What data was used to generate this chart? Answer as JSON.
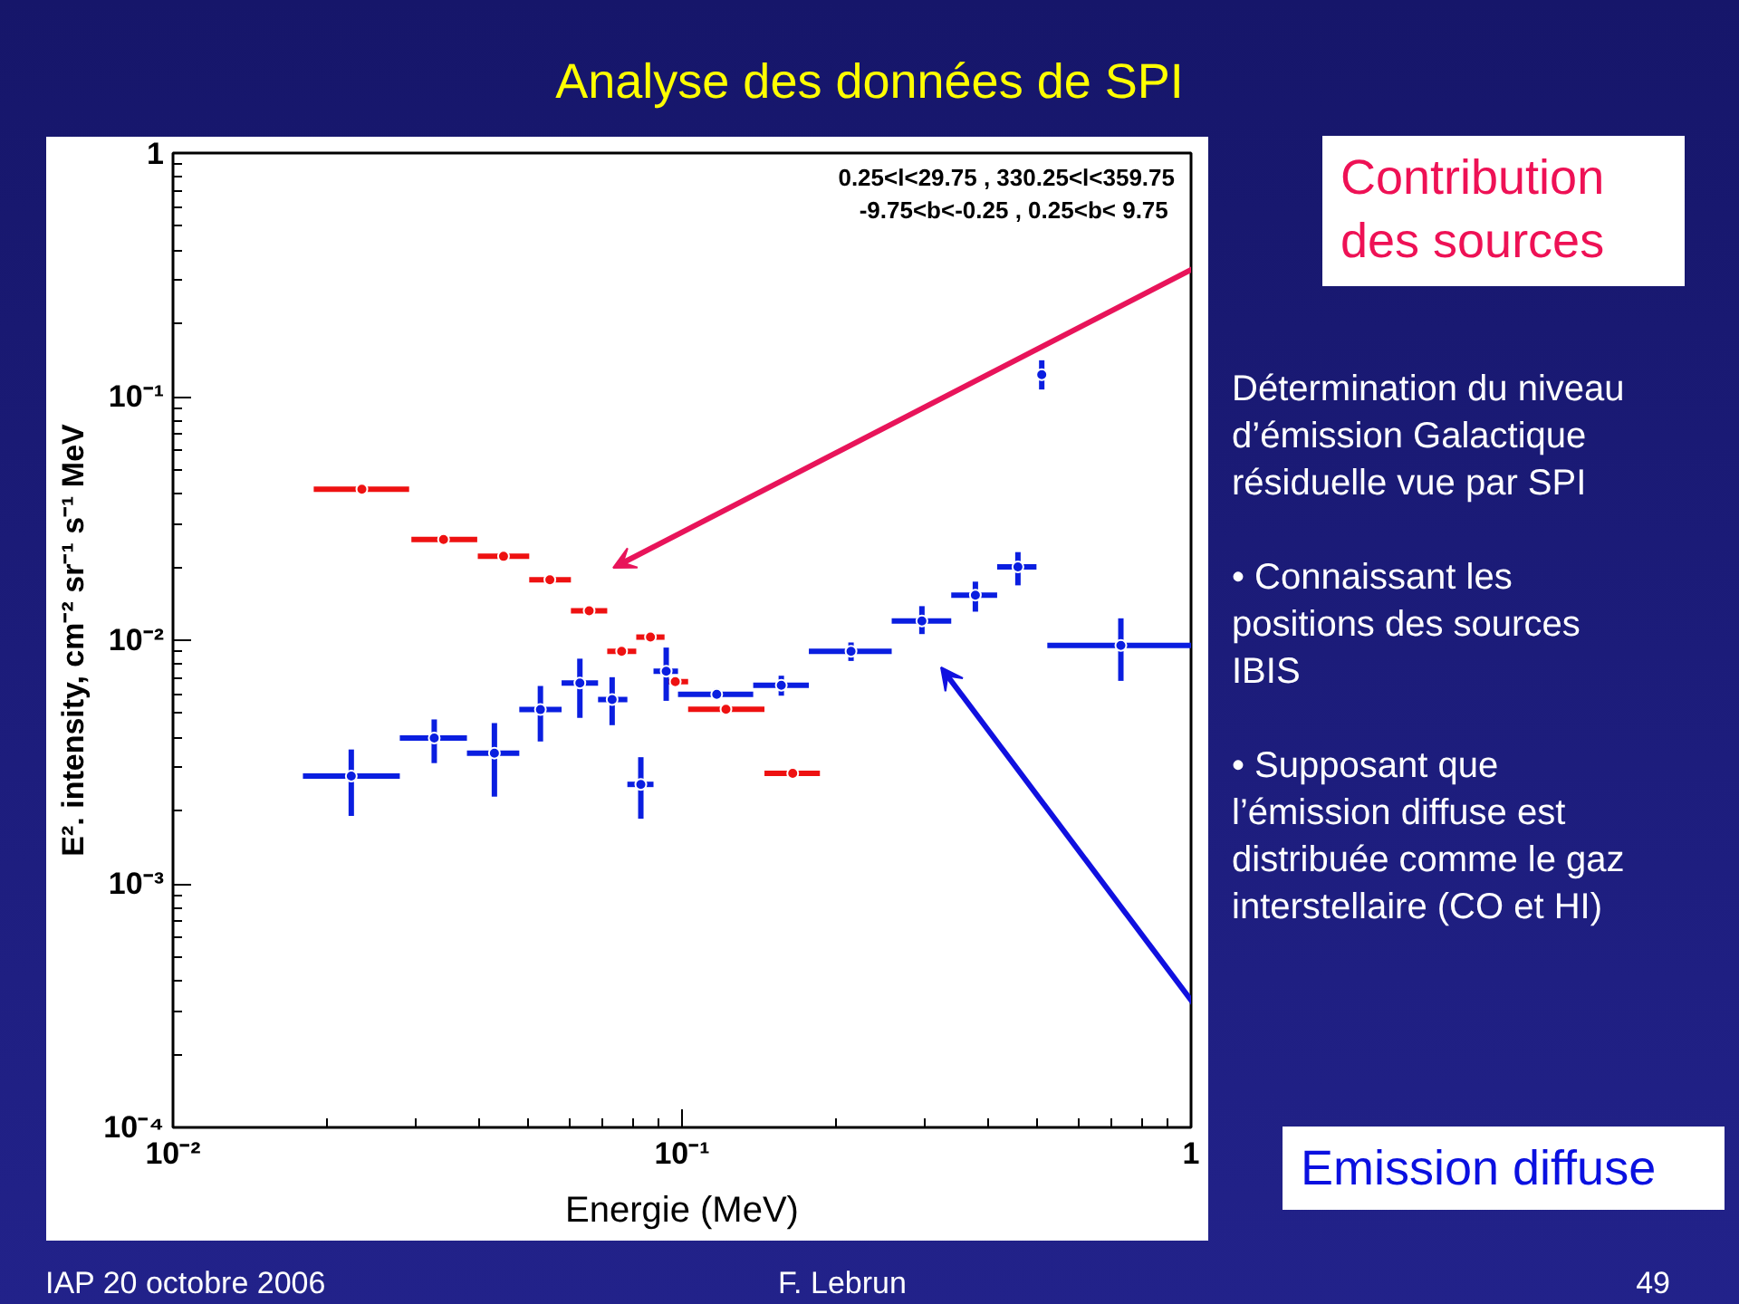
{
  "chart_data": {
    "type": "scatter",
    "title": "Analyse des données de SPI",
    "xlabel": "Energie (MeV)",
    "ylabel": "E². intensity, cm⁻² sr⁻¹ s⁻¹ MeV",
    "log": "xy",
    "marker": "circle",
    "grid": false,
    "xlim": [
      0.01,
      1
    ],
    "ylim": [
      0.0001,
      1
    ],
    "xticks": [
      {
        "value": 0.01,
        "label": "10⁻²"
      },
      {
        "value": 0.1,
        "label": "10⁻¹"
      },
      1
    ],
    "yticks": [
      {
        "value": 0.0001,
        "label": "10⁻⁴"
      },
      {
        "value": 0.001,
        "label": "10⁻³"
      },
      {
        "value": 0.01,
        "label": "10⁻²"
      },
      {
        "value": 0.1,
        "label": "10⁻¹"
      },
      1
    ],
    "series": [
      {
        "color": "#ee1111",
        "x": [
          0.0235,
          0.034,
          0.0446,
          0.055,
          0.0657,
          0.0761,
          0.0867,
          0.097,
          0.122,
          0.165
        ],
        "values": [
          0.0417,
          0.0259,
          0.0221,
          0.0177,
          0.0132,
          0.009,
          0.0103,
          0.00676,
          0.00521,
          0.00284
        ],
        "xerrors": [
          [
            0.0189,
            0.0291
          ],
          [
            0.0294,
            0.0396
          ],
          [
            0.0397,
            0.0501
          ],
          [
            0.0501,
            0.0605
          ],
          [
            0.0605,
            0.0713
          ],
          [
            0.0713,
            0.0813
          ],
          [
            0.0813,
            0.0924
          ],
          [
            0.0924,
            0.1028
          ],
          [
            0.1028,
            0.1452
          ],
          [
            0.1452,
            0.1866
          ]
        ]
      },
      {
        "color": "#0a1ee0",
        "x": [
          0.0224,
          0.0326,
          0.0428,
          0.0527,
          0.063,
          0.0729,
          0.083,
          0.0931,
          0.117,
          0.1567,
          0.2148,
          0.296,
          0.377,
          0.457,
          0.509,
          0.728
        ],
        "values": [
          0.00277,
          0.00397,
          0.00344,
          0.00519,
          0.00667,
          0.00571,
          0.00256,
          0.00746,
          0.006,
          0.00653,
          0.009,
          0.012,
          0.0153,
          0.02,
          0.123,
          0.00952
        ],
        "xerrors": [
          [
            0.018,
            0.0279
          ],
          [
            0.0279,
            0.0378
          ],
          [
            0.0378,
            0.0479
          ],
          [
            0.0479,
            0.058
          ],
          [
            0.058,
            0.0684
          ],
          [
            0.0684,
            0.0781
          ],
          [
            0.0781,
            0.0879
          ],
          [
            0.0879,
            0.0982
          ],
          [
            0.0982,
            0.138
          ],
          [
            0.138,
            0.1775
          ],
          [
            0.1775,
            0.2582
          ],
          [
            0.2582,
            0.338
          ],
          [
            0.338,
            0.416
          ],
          [
            0.416,
            0.497
          ],
          null,
          [
            0.522,
            1.0
          ]
        ],
        "errors": [
          [
            0.0019,
            0.00356
          ],
          [
            0.00313,
            0.00473
          ],
          [
            0.00228,
            0.00457
          ],
          [
            0.00384,
            0.00649
          ],
          [
            0.0048,
            0.0084
          ],
          [
            0.00448,
            0.00705
          ],
          [
            0.00185,
            0.00331
          ],
          [
            0.00564,
            0.00933
          ],
          [
            0.00571,
            0.00631
          ],
          [
            0.00592,
            0.00715
          ],
          [
            0.00822,
            0.00979
          ],
          [
            0.0106,
            0.0138
          ],
          [
            0.0131,
            0.0174
          ],
          [
            0.0168,
            0.023
          ],
          [
            0.107,
            0.141
          ],
          [
            0.00681,
            0.0123
          ]
        ]
      }
    ],
    "annotations": [
      "0.25<l<29.75 , 330.25<l<359.75\n-9.75<b<-0.25 ,  0.25<b< 9.75",
      "Contribution\ndes sources",
      "Détermination du niveau\nd’émission Galactique\nrésiduelle vue par SPI\n\n• Connaissant les\npositions des sources\nIBIS\n\n• Supposant que\nl’émission diffuse est\ndistribuée comme le gaz\ninterstellaire (CO et HI)",
      "Emission diffuse",
      "IAP 20 octobre 2006",
      "F. Lebrun",
      "49"
    ]
  }
}
